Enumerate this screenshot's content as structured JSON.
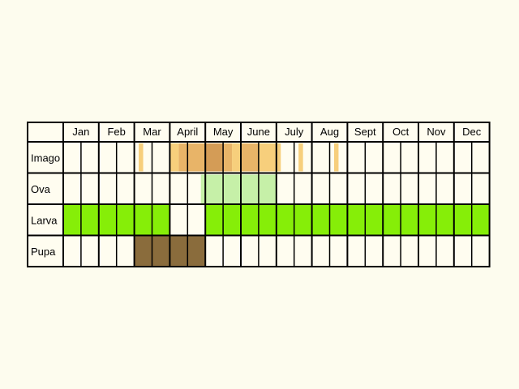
{
  "months": [
    "Jan",
    "Feb",
    "Mar",
    "April",
    "May",
    "June",
    "July",
    "Aug",
    "Sept",
    "Oct",
    "Nov",
    "Dec"
  ],
  "stages": [
    "Imago",
    "Ova",
    "Larva",
    "Pupa"
  ],
  "colors": {
    "background": "#fdfcee",
    "cell": "#fffdf0",
    "grid": "#000000",
    "larva": "#86ee08",
    "pupa": "#8a6c3c",
    "ova": "#c6f0a8",
    "imago_light": "#f7cf7c",
    "imago_mid": "#e8b468",
    "imago_dark": "#d49c56"
  },
  "activity": {
    "Imago": [
      {
        "period": [
          4.25,
          4.5
        ],
        "shade": "imago_light"
      },
      {
        "period": [
          6.0,
          6.5
        ],
        "shade": "imago_light"
      },
      {
        "period": [
          6.5,
          8.0
        ],
        "shade": "imago_mid"
      },
      {
        "period": [
          8.0,
          9.0
        ],
        "shade": "imago_dark"
      },
      {
        "period": [
          9.0,
          9.5
        ],
        "shade": "imago_mid"
      },
      {
        "period": [
          9.5,
          10.0
        ],
        "shade": "imago_light"
      },
      {
        "period": [
          10.0,
          11.0
        ],
        "shade": "imago_mid"
      },
      {
        "period": [
          11.0,
          12.25
        ],
        "shade": "imago_light"
      },
      {
        "period": [
          13.25,
          13.5
        ],
        "shade": "imago_light"
      },
      {
        "period": [
          15.25,
          15.5
        ],
        "shade": "imago_light"
      }
    ],
    "Ova": [
      {
        "period": [
          7.75,
          12.0
        ],
        "shade": "ova"
      }
    ],
    "Larva": [
      {
        "period": [
          0,
          6
        ],
        "shade": "larva"
      },
      {
        "period": [
          8,
          24
        ],
        "shade": "larva"
      }
    ],
    "Pupa": [
      {
        "period": [
          4,
          8
        ],
        "shade": "pupa"
      }
    ]
  }
}
